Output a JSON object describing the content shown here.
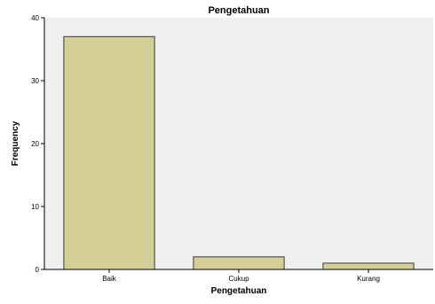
{
  "chart_data": {
    "type": "bar",
    "title": "Pengetahuan",
    "xlabel": "Pengetahuan",
    "ylabel": "Frequency",
    "categories": [
      "Baik",
      "Cukup",
      "Kurang"
    ],
    "values": [
      37,
      2,
      1
    ],
    "ylim": [
      0,
      40
    ],
    "yticks": [
      0,
      10,
      20,
      30,
      40
    ],
    "grid": false,
    "legend": "none"
  },
  "colors": {
    "plot_background": "#f0f0f0",
    "bar_fill": "#d4cf97",
    "bar_stroke": "#3a3a3a",
    "axis": "#000000"
  }
}
